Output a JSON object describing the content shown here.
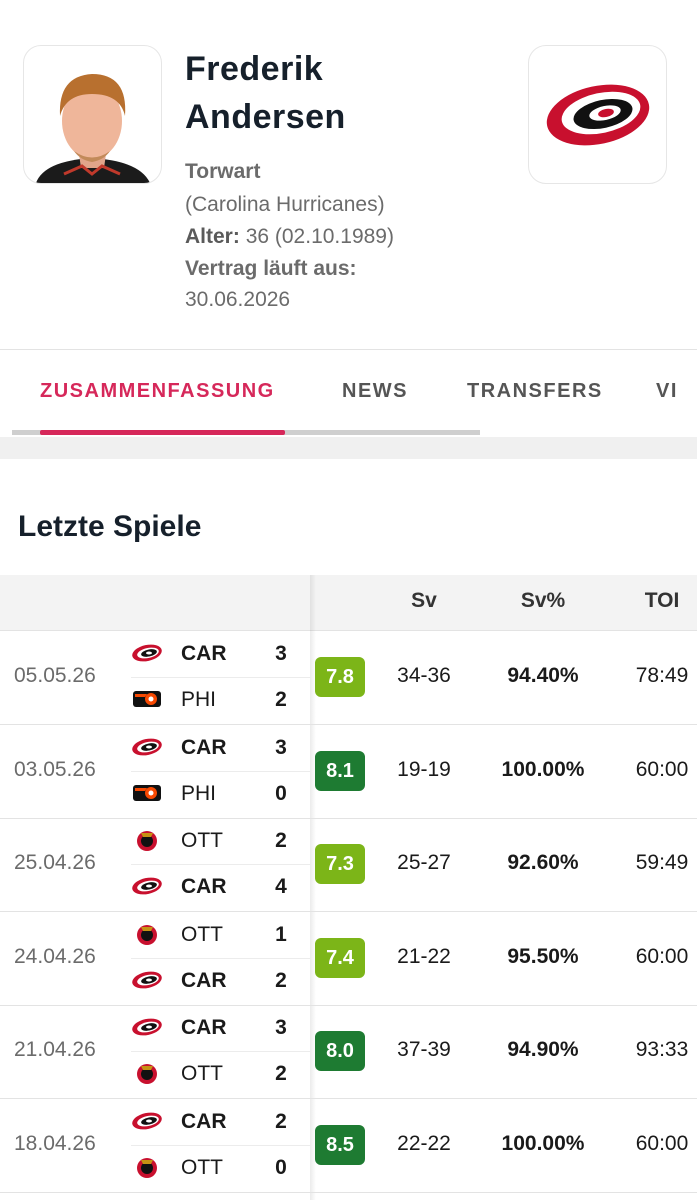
{
  "player": {
    "first_name": "Frederik",
    "last_name": "Andersen",
    "position": "Torwart",
    "team": "(Carolina Hurricanes)",
    "age_label": "Alter:",
    "age": "36 (02.10.1989)",
    "contract_label": "Vertrag läuft aus:",
    "contract_date": "30.06.2026"
  },
  "tabs": [
    "ZUSAMMENFASSUNG",
    "NEWS",
    "TRANSFERS",
    "VI"
  ],
  "section_title": "Letzte Spiele",
  "table": {
    "columns": [
      "Sv",
      "Sv%",
      "TOI"
    ],
    "rows": [
      {
        "date": "05.05.26",
        "teams": [
          {
            "abbr": "CAR",
            "score": "3"
          },
          {
            "abbr": "PHI",
            "score": "2"
          }
        ],
        "rating": "7.8",
        "sv": "34-36",
        "sv_pct": "94.40%",
        "toi": "78:49"
      },
      {
        "date": "03.05.26",
        "teams": [
          {
            "abbr": "CAR",
            "score": "3"
          },
          {
            "abbr": "PHI",
            "score": "0"
          }
        ],
        "rating": "8.1",
        "sv": "19-19",
        "sv_pct": "100.00%",
        "toi": "60:00"
      },
      {
        "date": "25.04.26",
        "teams": [
          {
            "abbr": "OTT",
            "score": "2"
          },
          {
            "abbr": "CAR",
            "score": "4"
          }
        ],
        "rating": "7.3",
        "sv": "25-27",
        "sv_pct": "92.60%",
        "toi": "59:49"
      },
      {
        "date": "24.04.26",
        "teams": [
          {
            "abbr": "OTT",
            "score": "1"
          },
          {
            "abbr": "CAR",
            "score": "2"
          }
        ],
        "rating": "7.4",
        "sv": "21-22",
        "sv_pct": "95.50%",
        "toi": "60:00"
      },
      {
        "date": "21.04.26",
        "teams": [
          {
            "abbr": "CAR",
            "score": "3"
          },
          {
            "abbr": "OTT",
            "score": "2"
          }
        ],
        "rating": "8.0",
        "sv": "37-39",
        "sv_pct": "94.90%",
        "toi": "93:33"
      },
      {
        "date": "18.04.26",
        "teams": [
          {
            "abbr": "CAR",
            "score": "2"
          },
          {
            "abbr": "OTT",
            "score": "0"
          }
        ],
        "rating": "8.5",
        "sv": "22-22",
        "sv_pct": "100.00%",
        "toi": "60:00"
      }
    ]
  }
}
